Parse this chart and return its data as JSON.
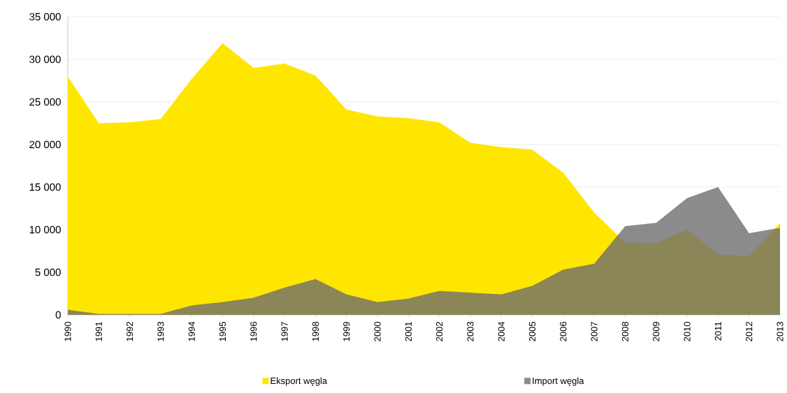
{
  "chart_data": {
    "type": "area",
    "categories": [
      "1990",
      "1991",
      "1992",
      "1993",
      "1994",
      "1995",
      "1996",
      "1997",
      "1998",
      "1999",
      "2000",
      "2001",
      "2002",
      "2003",
      "2004",
      "2005",
      "2006",
      "2007",
      "2008",
      "2009",
      "2010",
      "2011",
      "2012",
      "2013"
    ],
    "series": [
      {
        "name": "Eksport węgla",
        "color": "#ffe600",
        "values": [
          28000,
          22500,
          22600,
          23000,
          27700,
          31900,
          29000,
          29500,
          28100,
          24100,
          23300,
          23100,
          22600,
          20200,
          19700,
          19400,
          16700,
          12000,
          8500,
          8400,
          10000,
          7100,
          6900,
          10800
        ]
      },
      {
        "name": "Import węgla",
        "color": "#6e6e6e",
        "values": [
          600,
          100,
          100,
          100,
          1100,
          1500,
          2000,
          3200,
          4200,
          2400,
          1500,
          1900,
          2800,
          2600,
          2400,
          3400,
          5300,
          6000,
          10400,
          10800,
          13700,
          15000,
          9600,
          10200
        ]
      }
    ],
    "ylim": [
      0,
      35000
    ],
    "yticks": [
      0,
      {
        "value": 5000,
        "label": "5 000"
      },
      {
        "value": 10000,
        "label": "10 000"
      },
      {
        "value": 15000,
        "label": "15 000"
      },
      {
        "value": 20000,
        "label": "20 000"
      },
      {
        "value": 25000,
        "label": "25 000"
      },
      {
        "value": 30000,
        "label": "30 000"
      },
      {
        "value": 35000,
        "label": "35 000"
      }
    ],
    "grid": "y",
    "legend": "bottom"
  }
}
